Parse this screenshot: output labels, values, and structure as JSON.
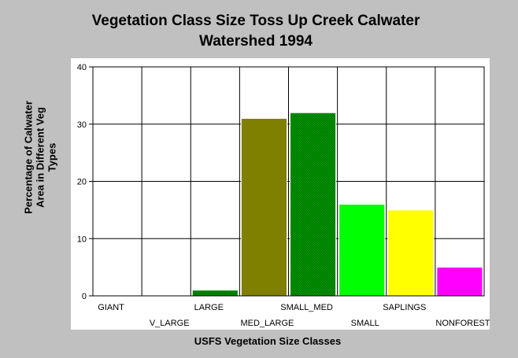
{
  "chart_data": {
    "type": "bar",
    "title": "Vegetation Class Size Toss Up Creek Calwater\nWatershed 1994",
    "xlabel": "USFS Vegetation Size Classes",
    "ylabel": "Percentage of Calwater\nArea in Different Veg\nTypes",
    "ylim": [
      0,
      40
    ],
    "yticks": [
      0,
      10,
      20,
      30,
      40
    ],
    "grid": true,
    "categories": [
      "GIANT",
      "V_LARGE",
      "LARGE",
      "MED_LARGE",
      "SMALL_MED",
      "SMALL",
      "SAPLINGS",
      "NONFOREST"
    ],
    "values": [
      0,
      0,
      1,
      31,
      32,
      16,
      15,
      5
    ],
    "colors": [
      "#000000",
      "#000000",
      "#008000",
      "#808000",
      "#009900",
      "#00ff00",
      "#ffff00",
      "#ff00ff"
    ]
  }
}
